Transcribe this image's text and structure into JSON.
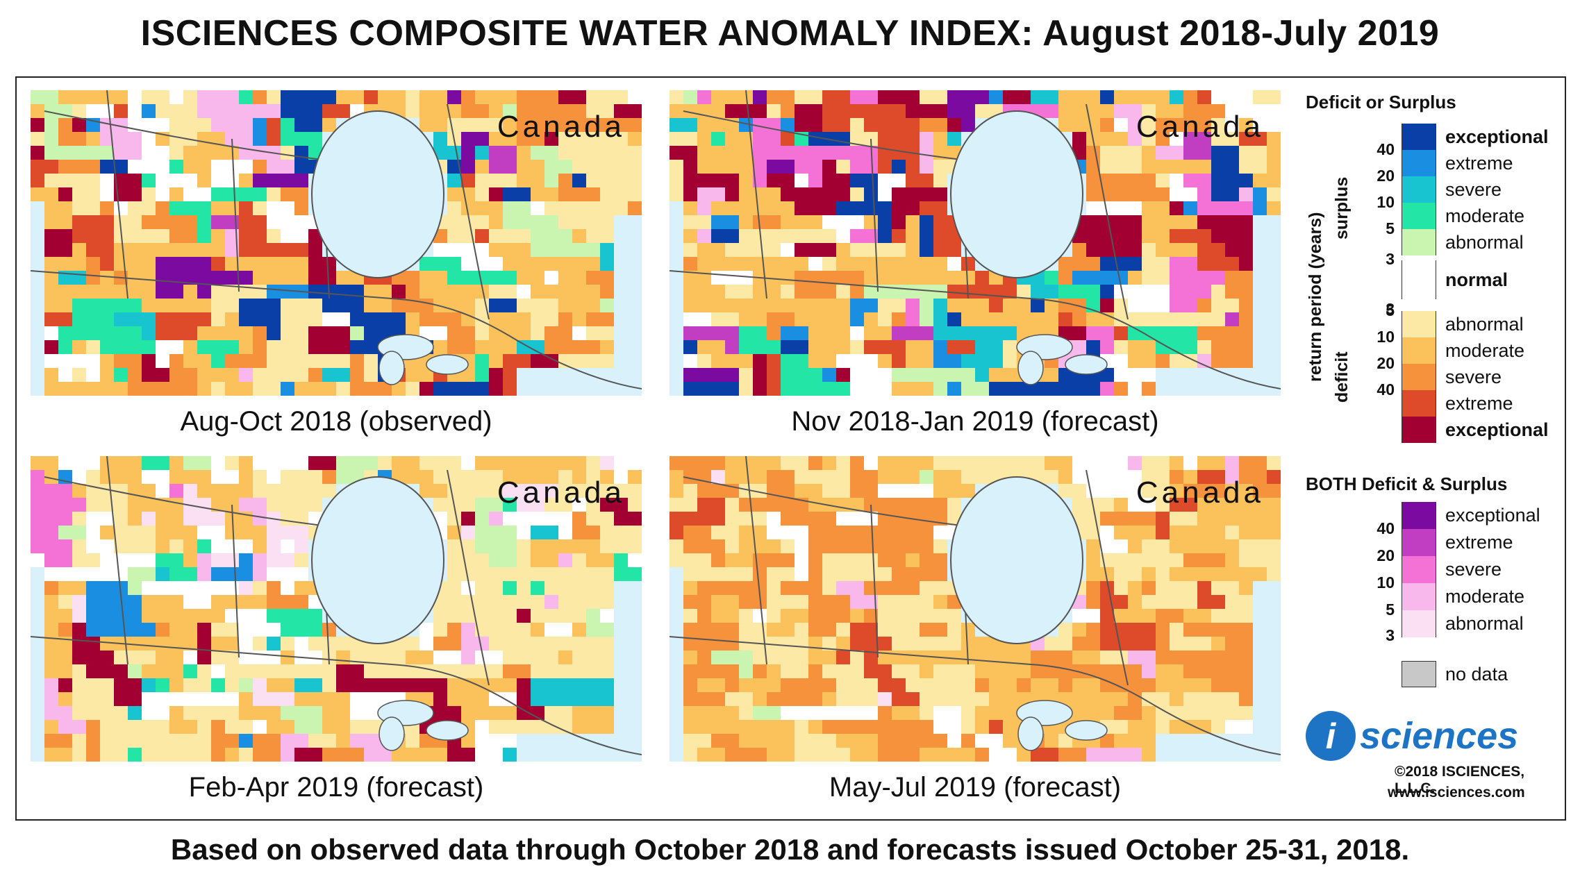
{
  "title": "ISCIENCES COMPOSITE WATER ANOMALY INDEX: August 2018-July 2019",
  "footer": "Based on observed data through October 2018 and forecasts issued October 25-31, 2018.",
  "panels": [
    {
      "region": "Canada",
      "caption": "Aug-Oct 2018 (observed)",
      "scenario": "mixed"
    },
    {
      "region": "Canada",
      "caption": "Nov 2018-Jan 2019 (forecast)",
      "scenario": "mixed"
    },
    {
      "region": "Canada",
      "caption": "Feb-Apr 2019 (forecast)",
      "scenario": "mild"
    },
    {
      "region": "Canada",
      "caption": "May-Jul 2019 (forecast)",
      "scenario": "dry"
    }
  ],
  "legend": {
    "title1": "Deficit or Surplus",
    "axis_label": "return period (years)",
    "surplus_label": "surplus",
    "deficit_label": "deficit",
    "surplus": [
      {
        "label": "exceptional",
        "num": "",
        "color": "#0a3fa8",
        "bold": true
      },
      {
        "label": "extreme",
        "num": "40",
        "color": "#1a8ee0",
        "bold": false
      },
      {
        "label": "severe",
        "num": "20",
        "color": "#17c4cf",
        "bold": false
      },
      {
        "label": "moderate",
        "num": "10",
        "color": "#22e5a6",
        "bold": false
      },
      {
        "label": "abnormal",
        "num": "5",
        "color": "#c9f5b0",
        "bold": false
      }
    ],
    "surplus_bottom_num": "3",
    "normal": {
      "label": "normal",
      "color": "#ffffff"
    },
    "deficit_top_num": "3",
    "deficit": [
      {
        "label": "abnormal",
        "num": "5",
        "color": "#fde9a6",
        "bold": false
      },
      {
        "label": "moderate",
        "num": "10",
        "color": "#fbc25b",
        "bold": false
      },
      {
        "label": "severe",
        "num": "20",
        "color": "#f6913c",
        "bold": false
      },
      {
        "label": "extreme",
        "num": "40",
        "color": "#dd4b2a",
        "bold": false
      },
      {
        "label": "exceptional",
        "num": "",
        "color": "#a20032",
        "bold": true
      }
    ],
    "title2": "BOTH Deficit & Surplus",
    "both": [
      {
        "label": "exceptional",
        "num": "",
        "color": "#7a0aa0"
      },
      {
        "label": "extreme",
        "num": "40",
        "color": "#c13ec2"
      },
      {
        "label": "severe",
        "num": "20",
        "color": "#f472d5"
      },
      {
        "label": "moderate",
        "num": "10",
        "color": "#f8b8ec"
      },
      {
        "label": "abnormal",
        "num": "5",
        "color": "#fbe0f3"
      }
    ],
    "both_bottom_num": "3",
    "nodata": {
      "label": "no data",
      "color": "#c8c8c8"
    }
  },
  "logo_text": "sciences",
  "logo_letter": "i",
  "copyright": "©2018 ISCIENCES, L.L.C.",
  "website": "www.isciences.com",
  "colors": {
    "water": "#d9f1fb",
    "outline": "#555555",
    "logo_blue": "#1e74c4"
  }
}
